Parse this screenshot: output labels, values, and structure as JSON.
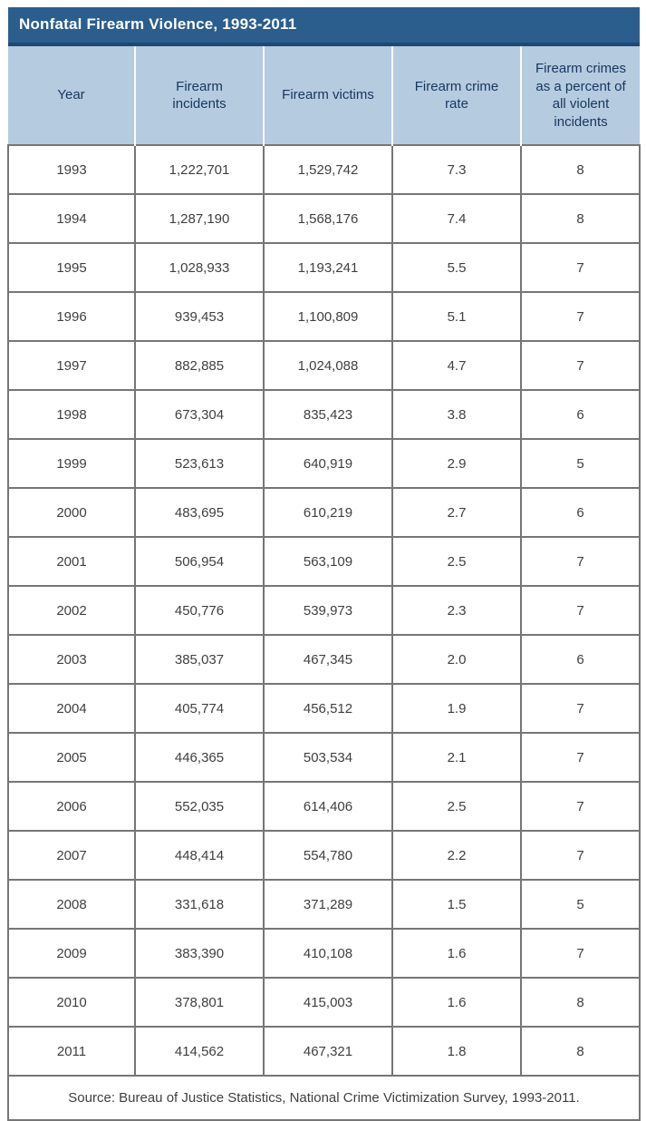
{
  "colors": {
    "title_bar_bg": "#2B5E8C",
    "title_bar_accent": "#1D4A73",
    "title_text": "#FFFFFF",
    "header_bg": "#B5CBE0",
    "header_text": "#17365D",
    "body_text": "#3F3F3F",
    "grid_border": "#767676",
    "header_separator": "#FBFBFB"
  },
  "chart_data": {
    "type": "table",
    "title": "Nonfatal Firearm Violence, 1993-2011",
    "columns": [
      "Year",
      "Firearm incidents",
      "Firearm victims",
      "Firearm crime rate",
      "Firearm crimes as a percent of all violent incidents"
    ],
    "rows": [
      [
        "1993",
        "1,222,701",
        "1,529,742",
        "7.3",
        "8"
      ],
      [
        "1994",
        "1,287,190",
        "1,568,176",
        "7.4",
        "8"
      ],
      [
        "1995",
        "1,028,933",
        "1,193,241",
        "5.5",
        "7"
      ],
      [
        "1996",
        "939,453",
        "1,100,809",
        "5.1",
        "7"
      ],
      [
        "1997",
        "882,885",
        "1,024,088",
        "4.7",
        "7"
      ],
      [
        "1998",
        "673,304",
        "835,423",
        "3.8",
        "6"
      ],
      [
        "1999",
        "523,613",
        "640,919",
        "2.9",
        "5"
      ],
      [
        "2000",
        "483,695",
        "610,219",
        "2.7",
        "6"
      ],
      [
        "2001",
        "506,954",
        "563,109",
        "2.5",
        "7"
      ],
      [
        "2002",
        "450,776",
        "539,973",
        "2.3",
        "7"
      ],
      [
        "2003",
        "385,037",
        "467,345",
        "2.0",
        "6"
      ],
      [
        "2004",
        "405,774",
        "456,512",
        "1.9",
        "7"
      ],
      [
        "2005",
        "446,365",
        "503,534",
        "2.1",
        "7"
      ],
      [
        "2006",
        "552,035",
        "614,406",
        "2.5",
        "7"
      ],
      [
        "2007",
        "448,414",
        "554,780",
        "2.2",
        "7"
      ],
      [
        "2008",
        "331,618",
        "371,289",
        "1.5",
        "5"
      ],
      [
        "2009",
        "383,390",
        "410,108",
        "1.6",
        "7"
      ],
      [
        "2010",
        "378,801",
        "415,003",
        "1.6",
        "8"
      ],
      [
        "2011",
        "414,562",
        "467,321",
        "1.8",
        "8"
      ]
    ],
    "source": "Source: Bureau of Justice Statistics, National Crime Victimization Survey, 1993-2011."
  }
}
